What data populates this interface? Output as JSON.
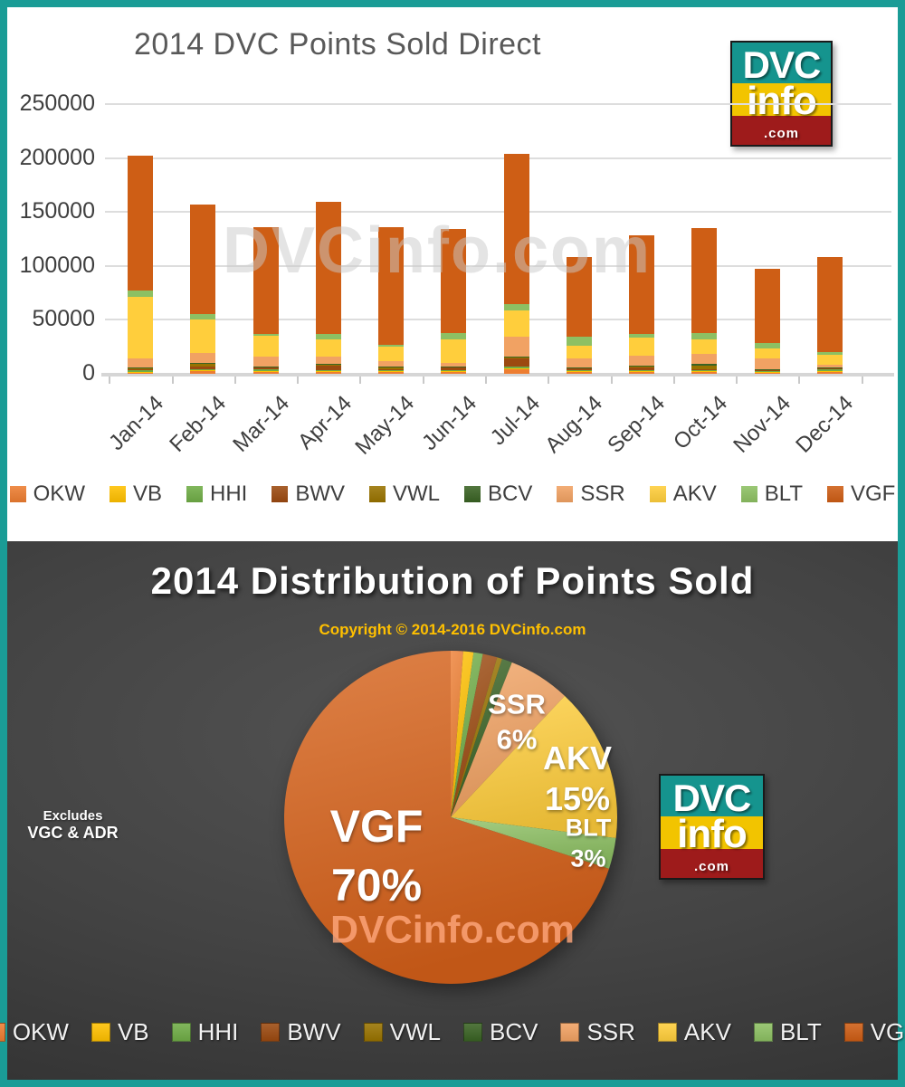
{
  "frame": {
    "border_color": "#1A9C96"
  },
  "logo": {
    "line1": "DVC",
    "line2": "info",
    "line3": ".com",
    "teal": "#15948E",
    "yellow": "#F2C400",
    "red": "#9E1B1B"
  },
  "top_section": {
    "watermark": "DVCinfo.com"
  },
  "bottom_section": {
    "copyright": "Copyright © 2014-2016 DVCinfo.com",
    "note_line1": "Excludes",
    "note_line2": "VGC & ADR",
    "watermark": "DVCinfo.com"
  },
  "chart_data": [
    {
      "type": "bar",
      "stacked": true,
      "title": "2014 DVC Points Sold Direct",
      "categories": [
        "Jan-14",
        "Feb-14",
        "Mar-14",
        "Apr-14",
        "May-14",
        "Jun-14",
        "Jul-14",
        "Aug-14",
        "Sep-14",
        "Oct-14",
        "Nov-14",
        "Dec-14"
      ],
      "y_ticks": [
        0,
        50000,
        100000,
        150000,
        200000,
        250000
      ],
      "ylim": [
        0,
        250000
      ],
      "grid": true,
      "legend_position": "bottom",
      "monthly_totals": [
        202000,
        157000,
        136000,
        159000,
        136000,
        134000,
        204000,
        108000,
        128000,
        135000,
        97000,
        108000
      ],
      "series": [
        {
          "name": "OKW",
          "color": "#ED7D31",
          "values": [
            1000,
            2500,
            2000,
            2000,
            2000,
            2000,
            4000,
            2000,
            2000,
            2000,
            1000,
            1500
          ]
        },
        {
          "name": "VB",
          "color": "#FFC000",
          "values": [
            500,
            1000,
            500,
            1000,
            500,
            1000,
            1000,
            500,
            500,
            1000,
            500,
            1000
          ]
        },
        {
          "name": "HHI",
          "color": "#70AD47",
          "values": [
            2500,
            500,
            2000,
            500,
            500,
            500,
            2000,
            1000,
            1000,
            500,
            1500,
            2000
          ]
        },
        {
          "name": "BWV",
          "color": "#9C4A10",
          "values": [
            500,
            3000,
            1000,
            4000,
            1000,
            2500,
            7000,
            1500,
            3000,
            1000,
            500,
            500
          ]
        },
        {
          "name": "VWL",
          "color": "#997300",
          "values": [
            500,
            2000,
            1000,
            1000,
            2500,
            500,
            1000,
            500,
            500,
            3000,
            500,
            500
          ]
        },
        {
          "name": "BCV",
          "color": "#3A6324",
          "values": [
            500,
            1000,
            500,
            500,
            500,
            500,
            1000,
            500,
            500,
            2000,
            500,
            500
          ]
        },
        {
          "name": "SSR",
          "color": "#F1A263",
          "values": [
            9000,
            9000,
            9000,
            7000,
            5000,
            3000,
            18000,
            8000,
            9000,
            9000,
            10000,
            2000
          ]
        },
        {
          "name": "AKV",
          "color": "#FFCE3C",
          "values": [
            57000,
            31000,
            19000,
            16000,
            13000,
            22000,
            25000,
            12000,
            17000,
            13000,
            9000,
            10000
          ]
        },
        {
          "name": "BLT",
          "color": "#8DC063",
          "values": [
            6000,
            5000,
            2000,
            5000,
            2000,
            6000,
            6000,
            8000,
            3500,
            6500,
            5000,
            2000
          ]
        },
        {
          "name": "VGF",
          "color": "#CE5E15",
          "values": [
            124500,
            102000,
            99000,
            122000,
            109000,
            96000,
            139000,
            74000,
            91000,
            97000,
            68500,
            88000
          ]
        }
      ]
    },
    {
      "type": "pie",
      "title": "2014 Distribution of Points Sold",
      "start_angle_deg": 0,
      "slices": [
        {
          "name": "OKW",
          "pct": 1.2,
          "color": "#ED7D31"
        },
        {
          "name": "VB",
          "pct": 1.0,
          "color": "#FFC000"
        },
        {
          "name": "HHI",
          "pct": 0.9,
          "color": "#70AD47"
        },
        {
          "name": "BWV",
          "pct": 1.4,
          "color": "#9C4A10"
        },
        {
          "name": "VWL",
          "pct": 0.5,
          "color": "#997300"
        },
        {
          "name": "BCV",
          "pct": 1.0,
          "color": "#3A6324"
        },
        {
          "name": "SSR",
          "pct": 6,
          "color": "#F1A263"
        },
        {
          "name": "AKV",
          "pct": 15,
          "color": "#FFCE3C"
        },
        {
          "name": "BLT",
          "pct": 3,
          "color": "#8DC063"
        },
        {
          "name": "VGF",
          "pct": 70,
          "color": "#D66119"
        }
      ],
      "callouts": {
        "ssr": {
          "name": "SSR",
          "pct": "6%"
        },
        "akv": {
          "name": "AKV",
          "pct": "15%"
        },
        "blt": {
          "name": "BLT",
          "pct": "3%"
        },
        "vgf": {
          "name": "VGF",
          "pct": "70%"
        }
      }
    }
  ]
}
